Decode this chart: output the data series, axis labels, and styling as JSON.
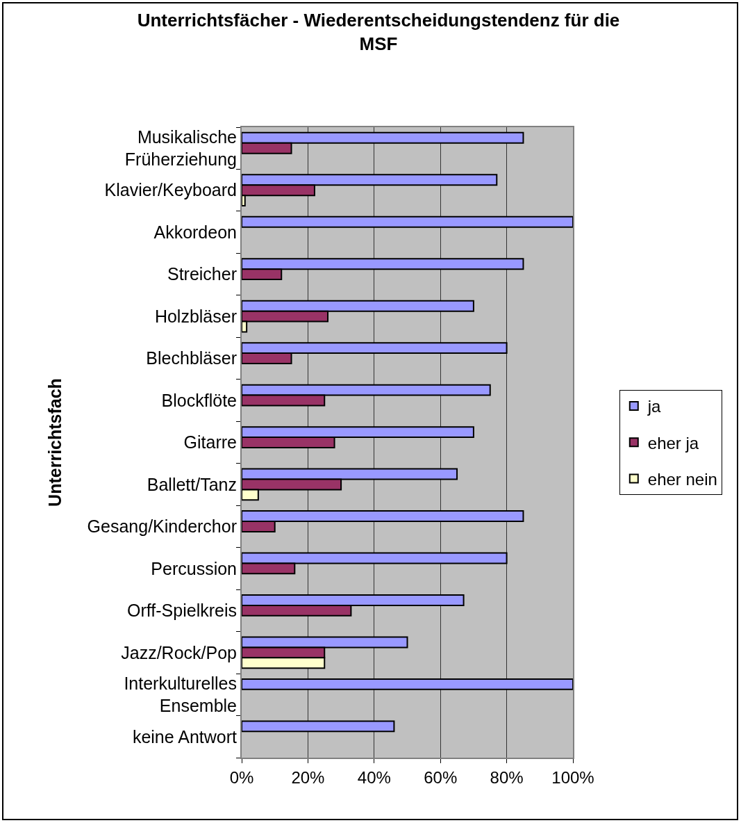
{
  "chart_data": {
    "type": "bar",
    "orientation": "horizontal",
    "title": "Unterrichtsfächer - Wiederentscheidungstendenz für die MSF",
    "ylabel": "Unterrichtsfach",
    "categories": [
      "Musikalische Früherziehung",
      "Klavier/Keyboard",
      "Akkordeon",
      "Streicher",
      "Holzbläser",
      "Blechbläser",
      "Blockflöte",
      "Gitarre",
      "Ballett/Tanz",
      "Gesang/Kinderchor",
      "Percussion",
      "Orff-Spielkreis",
      "Jazz/Rock/Pop",
      "Interkulturelles Ensemble",
      "keine Antwort"
    ],
    "series": [
      {
        "name": "ja",
        "color": "#9999ff",
        "values": [
          85,
          77,
          100,
          85,
          70,
          80,
          75,
          70,
          65,
          85,
          80,
          67,
          50,
          100,
          46
        ]
      },
      {
        "name": "eher ja",
        "color": "#993366",
        "values": [
          15,
          22,
          null,
          12,
          26,
          15,
          25,
          28,
          30,
          10,
          16,
          33,
          25,
          null,
          null
        ]
      },
      {
        "name": "eher nein",
        "color": "#ffffcc",
        "values": [
          null,
          1,
          null,
          null,
          1.5,
          null,
          null,
          null,
          5,
          null,
          null,
          null,
          25,
          null,
          null
        ]
      }
    ],
    "xlim": [
      0,
      100
    ],
    "xticks": [
      {
        "value": 0,
        "label": "0%"
      },
      {
        "value": 20,
        "label": "20%"
      },
      {
        "value": 40,
        "label": "40%"
      },
      {
        "value": 60,
        "label": "60%"
      },
      {
        "value": 80,
        "label": "80%"
      },
      {
        "value": 100,
        "label": "100%"
      }
    ],
    "grid": "x",
    "legend": "right"
  }
}
